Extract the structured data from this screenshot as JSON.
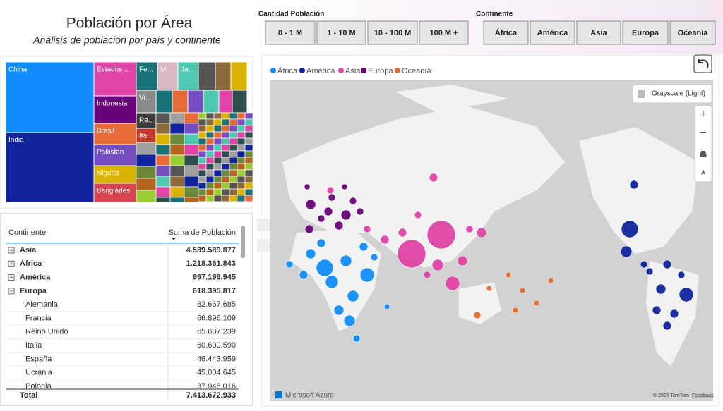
{
  "header": {
    "title": "Población por Área",
    "subtitle": "Análisis de población por país y continente"
  },
  "slicers": [
    {
      "title": "Cantidad Población",
      "options": [
        "0 - 1 M",
        "1 - 10 M",
        "10 - 100 M",
        "100 M +"
      ]
    },
    {
      "title": "Continente",
      "options": [
        "África",
        "América",
        "Asia",
        "Europa",
        "Oceanía"
      ]
    }
  ],
  "treemap": {
    "labels": [
      "China",
      "India",
      "Estados ...",
      "Indonesia",
      "Brasil",
      "Pakistán",
      "Nigeria",
      "Bangladés",
      "Fe...",
      "M...",
      "Ja...",
      "Vi...",
      "Re...",
      "Ita..."
    ]
  },
  "map": {
    "legend": [
      "África",
      "América",
      "Asia",
      "Europa",
      "Oceanía"
    ],
    "style_button": "Grayscale (Light)",
    "brand": "Microsoft Azure",
    "copyright": "© 2026 TomTom",
    "feedback": "Feedback"
  },
  "table": {
    "columns": [
      "Continente",
      "Suma de Población"
    ],
    "rows": [
      [
        "Asia",
        "4.539.589.877"
      ],
      [
        "África",
        "1.218.361.843"
      ],
      [
        "América",
        "997.199.945"
      ],
      [
        "Europa",
        "618.395.817"
      ],
      [
        "Alemania",
        "82.667.685"
      ],
      [
        "Francia",
        "66.896.109"
      ],
      [
        "Reino Unido",
        "65.637.239"
      ],
      [
        "Italia",
        "60.600.590"
      ],
      [
        "España",
        "46.443.959"
      ],
      [
        "Ucrania",
        "45.004.645"
      ],
      [
        "Polonia",
        "37.948.016"
      ]
    ],
    "total": [
      "Total",
      "7.413.672.933"
    ]
  }
}
